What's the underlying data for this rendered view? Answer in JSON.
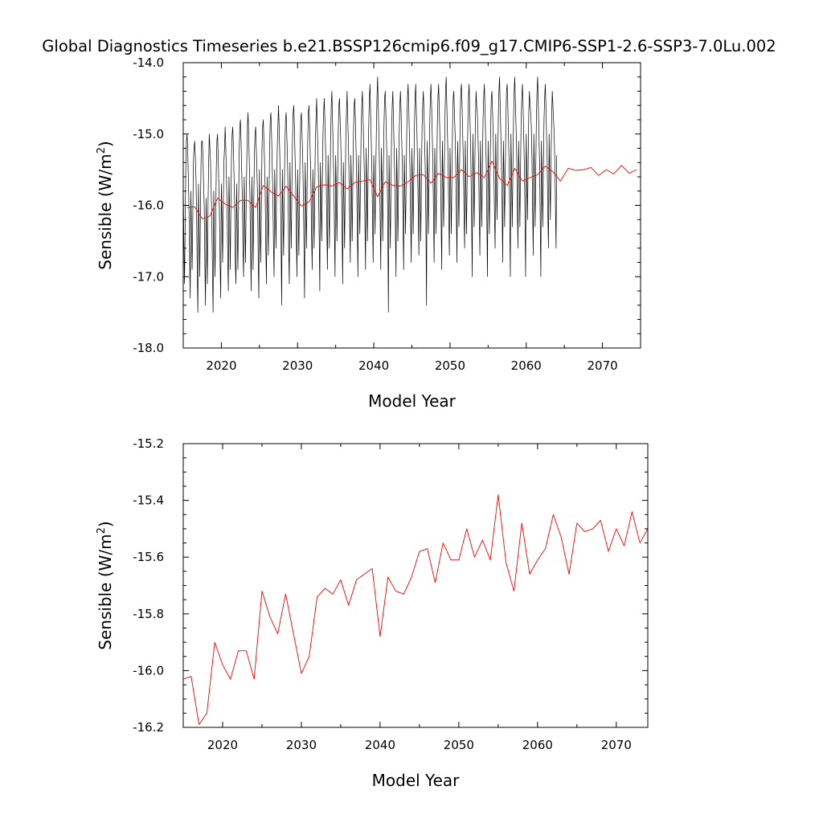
{
  "title": "Global Diagnostics Timeseries b.e21.BSSP126cmip6.f09_g17.CMIP6-SSP1-2.6-SSP3-7.0Lu.002",
  "colors": {
    "monthly": "#000000",
    "annual": "#ff0000",
    "axes": "#000000",
    "background": "#ffffff"
  },
  "chart_data": [
    {
      "type": "line",
      "xlabel": "Model Year",
      "ylabel_main": "Sensible (W/m",
      "ylabel_sup": "2",
      "ylabel_tail": ")",
      "xlim": [
        2015,
        2075
      ],
      "ylim": [
        -18.0,
        -14.0
      ],
      "xticks": [
        2020,
        2030,
        2040,
        2050,
        2060,
        2070
      ],
      "xtick_labels": [
        "2020",
        "2030",
        "2040",
        "2050",
        "2060",
        "2070"
      ],
      "yticks": [
        -18.0,
        -17.0,
        -16.0,
        -15.0,
        -14.0
      ],
      "ytick_labels": [
        "-18.0",
        "-17.0",
        "-16.0",
        "-15.0",
        "-14.0"
      ],
      "grid": false,
      "series": [
        {
          "kind": "monthly",
          "color": "#000000",
          "x_start": 2015.0,
          "x_step": 0.0833333,
          "values": [
            -15.7,
            -16.5,
            -17.1,
            -16.3,
            -15.5,
            -15.1,
            -15.0,
            -15.2,
            -15.6,
            -16.0,
            -16.7,
            -17.3,
            -15.8,
            -16.4,
            -16.9,
            -16.2,
            -15.4,
            -15.2,
            -15.1,
            -15.3,
            -15.6,
            -16.1,
            -16.9,
            -17.5,
            -15.7,
            -16.3,
            -17.0,
            -16.1,
            -15.4,
            -15.1,
            -15.1,
            -15.3,
            -15.7,
            -16.0,
            -16.8,
            -17.4,
            -15.9,
            -16.5,
            -17.1,
            -16.0,
            -15.4,
            -15.0,
            -15.2,
            -15.4,
            -15.8,
            -16.2,
            -16.9,
            -17.5,
            -15.8,
            -16.4,
            -17.0,
            -16.3,
            -15.5,
            -15.1,
            -15.0,
            -15.3,
            -15.7,
            -16.1,
            -16.8,
            -17.3,
            -15.7,
            -16.2,
            -16.8,
            -16.0,
            -15.4,
            -15.2,
            -14.9,
            -15.2,
            -15.6,
            -16.0,
            -16.7,
            -17.2,
            -15.6,
            -16.1,
            -16.9,
            -16.0,
            -15.3,
            -15.0,
            -14.9,
            -15.2,
            -15.6,
            -16.0,
            -16.8,
            -17.1,
            -15.7,
            -16.3,
            -16.9,
            -16.1,
            -15.3,
            -14.9,
            -14.8,
            -15.1,
            -15.5,
            -15.9,
            -16.6,
            -17.0,
            -15.6,
            -16.2,
            -16.8,
            -16.0,
            -15.4,
            -14.9,
            -14.7,
            -15.0,
            -15.4,
            -15.9,
            -16.6,
            -17.2,
            -15.6,
            -16.1,
            -16.9,
            -16.0,
            -15.3,
            -15.0,
            -14.9,
            -15.2,
            -15.5,
            -15.9,
            -16.7,
            -17.3,
            -15.5,
            -16.2,
            -16.8,
            -16.0,
            -15.2,
            -14.9,
            -14.8,
            -15.1,
            -15.4,
            -15.8,
            -16.6,
            -17.1,
            -15.6,
            -16.1,
            -16.7,
            -15.9,
            -15.2,
            -14.8,
            -14.7,
            -15.0,
            -15.4,
            -15.8,
            -16.5,
            -17.0,
            -15.5,
            -16.0,
            -16.6,
            -15.8,
            -15.2,
            -14.9,
            -14.6,
            -14.9,
            -15.3,
            -15.8,
            -16.5,
            -17.4,
            -15.5,
            -16.1,
            -16.7,
            -15.9,
            -15.2,
            -14.8,
            -14.7,
            -15.0,
            -15.3,
            -15.8,
            -16.6,
            -17.1,
            -15.4,
            -16.0,
            -16.6,
            -15.8,
            -15.1,
            -14.7,
            -14.6,
            -14.9,
            -15.3,
            -15.7,
            -16.4,
            -17.0,
            -15.5,
            -16.1,
            -16.7,
            -15.9,
            -15.2,
            -14.8,
            -14.7,
            -15.0,
            -15.3,
            -15.8,
            -16.5,
            -17.3,
            -15.4,
            -15.9,
            -16.6,
            -15.8,
            -15.1,
            -14.7,
            -14.6,
            -14.9,
            -15.3,
            -15.7,
            -16.4,
            -16.9,
            -15.5,
            -16.0,
            -16.6,
            -15.8,
            -15.1,
            -14.8,
            -14.5,
            -14.9,
            -15.2,
            -15.7,
            -16.4,
            -17.2,
            -15.4,
            -15.9,
            -16.5,
            -15.7,
            -15.0,
            -14.7,
            -14.5,
            -14.8,
            -15.2,
            -15.6,
            -16.3,
            -16.9,
            -15.3,
            -15.9,
            -16.6,
            -15.8,
            -15.1,
            -14.6,
            -14.4,
            -14.8,
            -15.2,
            -15.6,
            -16.3,
            -17.0,
            -15.3,
            -15.8,
            -16.5,
            -15.7,
            -15.0,
            -14.6,
            -14.5,
            -14.8,
            -15.1,
            -15.6,
            -16.3,
            -17.1,
            -15.4,
            -15.9,
            -16.6,
            -15.8,
            -15.0,
            -14.7,
            -14.4,
            -14.8,
            -15.1,
            -15.6,
            -16.2,
            -16.8,
            -15.3,
            -15.8,
            -16.5,
            -15.7,
            -15.0,
            -14.6,
            -14.5,
            -14.8,
            -15.2,
            -15.6,
            -16.3,
            -17.0,
            -15.3,
            -15.9,
            -16.4,
            -15.7,
            -15.0,
            -14.6,
            -14.4,
            -14.7,
            -15.1,
            -15.5,
            -16.2,
            -16.9,
            -15.2,
            -15.8,
            -16.5,
            -15.6,
            -14.9,
            -14.5,
            -14.3,
            -14.7,
            -15.1,
            -15.5,
            -16.2,
            -16.8,
            -15.3,
            -15.8,
            -16.4,
            -15.6,
            -15.0,
            -14.5,
            -14.2,
            -14.6,
            -15.0,
            -15.5,
            -16.2,
            -16.9,
            -15.2,
            -15.7,
            -16.5,
            -15.6,
            -14.9,
            -14.5,
            -14.4,
            -14.7,
            -15.1,
            -15.5,
            -16.2,
            -17.5,
            -15.3,
            -15.9,
            -16.6,
            -15.8,
            -15.0,
            -14.6,
            -14.4,
            -14.8,
            -15.2,
            -15.6,
            -16.3,
            -17.0,
            -15.2,
            -15.8,
            -16.5,
            -15.7,
            -15.0,
            -14.6,
            -14.4,
            -14.7,
            -15.1,
            -15.5,
            -16.2,
            -16.9,
            -15.3,
            -15.8,
            -16.4,
            -15.6,
            -14.9,
            -14.5,
            -14.3,
            -14.6,
            -15.0,
            -15.5,
            -16.2,
            -16.8,
            -15.2,
            -15.7,
            -16.4,
            -15.6,
            -14.9,
            -14.5,
            -14.3,
            -14.7,
            -15.0,
            -15.5,
            -16.1,
            -16.7,
            -15.2,
            -15.8,
            -16.5,
            -15.6,
            -14.9,
            -14.6,
            -14.4,
            -14.7,
            -15.1,
            -15.5,
            -16.2,
            -17.4,
            -15.1,
            -15.7,
            -16.4,
            -15.6,
            -14.9,
            -14.5,
            -14.3,
            -14.6,
            -15.0,
            -15.4,
            -16.1,
            -16.8,
            -15.2,
            -15.7,
            -16.4,
            -15.6,
            -14.9,
            -14.5,
            -14.3,
            -14.6,
            -15.0,
            -15.4,
            -16.2,
            -16.9,
            -15.1,
            -15.7,
            -16.3,
            -15.5,
            -14.8,
            -14.4,
            -14.2,
            -14.6,
            -15.0,
            -15.4,
            -16.1,
            -16.7,
            -15.2,
            -15.7,
            -16.4,
            -15.6,
            -14.9,
            -14.5,
            -14.4,
            -14.7,
            -15.0,
            -15.4,
            -16.1,
            -16.8,
            -15.1,
            -15.6,
            -16.3,
            -15.5,
            -14.8,
            -14.4,
            -14.3,
            -14.6,
            -15.0,
            -15.4,
            -16.1,
            -16.6,
            -15.1,
            -15.7,
            -16.4,
            -15.6,
            -14.9,
            -14.5,
            -14.3,
            -14.6,
            -15.0,
            -15.5,
            -16.2,
            -17.0,
            -15.0,
            -15.6,
            -16.3,
            -15.5,
            -14.8,
            -14.4,
            -14.6,
            -14.7,
            -15.0,
            -15.4,
            -16.1,
            -16.7,
            -15.1,
            -15.6,
            -16.3,
            -15.5,
            -14.8,
            -14.5,
            -14.3,
            -14.6,
            -15.0,
            -15.4,
            -16.2,
            -17.0,
            -15.1,
            -15.7,
            -16.4,
            -15.6,
            -14.9,
            -14.5,
            -14.4,
            -14.7,
            -15.0,
            -15.5,
            -16.1,
            -16.6,
            -15.0,
            -15.6,
            -16.2,
            -15.5,
            -14.8,
            -14.4,
            -14.2,
            -14.6,
            -15.0,
            -15.4,
            -16.0,
            -16.8,
            -15.1,
            -15.6,
            -16.3,
            -15.5,
            -14.8,
            -14.4,
            -14.3,
            -14.6,
            -15.0,
            -15.4,
            -16.1,
            -17.0,
            -15.0,
            -15.6,
            -16.3,
            -15.5,
            -14.8,
            -14.4,
            -14.2,
            -14.6,
            -14.9,
            -15.3,
            -16.0,
            -16.6,
            -15.1,
            -15.6,
            -16.3,
            -15.5,
            -14.8,
            -14.5,
            -14.3,
            -14.6,
            -15.0,
            -15.4,
            -16.1,
            -17.0,
            -15.0,
            -15.5,
            -16.2,
            -15.4,
            -14.7,
            -14.4,
            -14.6,
            -14.7,
            -14.9,
            -15.3,
            -16.0,
            -16.7,
            -15.0,
            -15.6,
            -16.3,
            -15.5,
            -14.8,
            -14.4,
            -14.2,
            -14.6,
            -15.0,
            -15.4,
            -16.2,
            -17.0,
            -15.1,
            -15.6,
            -16.3,
            -15.5,
            -14.8,
            -14.5,
            -14.3,
            -14.6,
            -15.0,
            -15.4,
            -16.1,
            -16.6,
            -15.0,
            -15.6,
            -16.2,
            -15.4,
            -14.8,
            -14.4,
            -14.6,
            -14.8,
            -15.0,
            -15.4,
            -16.0,
            -16.6,
            -15.3
          ]
        },
        {
          "kind": "annual",
          "color": "#ff0000",
          "x": [
            2015.5,
            2016.5,
            2017.5,
            2018.5,
            2019.5,
            2020.5,
            2021.5,
            2022.5,
            2023.5,
            2024.5,
            2025.5,
            2026.5,
            2027.5,
            2028.5,
            2029.5,
            2030.5,
            2031.5,
            2032.5,
            2033.5,
            2034.5,
            2035.5,
            2036.5,
            2037.5,
            2038.5,
            2039.5,
            2040.5,
            2041.5,
            2042.5,
            2043.5,
            2044.5,
            2045.5,
            2046.5,
            2047.5,
            2048.5,
            2049.5,
            2050.5,
            2051.5,
            2052.5,
            2053.5,
            2054.5,
            2055.5,
            2056.5,
            2057.5,
            2058.5,
            2059.5,
            2060.5,
            2061.5,
            2062.5,
            2063.5,
            2064.5,
            2065.5,
            2066.5,
            2067.5,
            2068.5,
            2069.5,
            2070.5,
            2071.5,
            2072.5,
            2073.5,
            2074.5
          ],
          "values": [
            -16.03,
            -16.02,
            -16.19,
            -16.15,
            -15.9,
            -15.98,
            -16.03,
            -15.93,
            -15.93,
            -16.03,
            -15.72,
            -15.81,
            -15.87,
            -15.73,
            -15.87,
            -16.01,
            -15.95,
            -15.74,
            -15.71,
            -15.73,
            -15.68,
            -15.77,
            -15.68,
            -15.66,
            -15.64,
            -15.88,
            -15.67,
            -15.72,
            -15.73,
            -15.67,
            -15.58,
            -15.57,
            -15.69,
            -15.55,
            -15.61,
            -15.61,
            -15.5,
            -15.6,
            -15.54,
            -15.61,
            -15.38,
            -15.62,
            -15.72,
            -15.48,
            -15.66,
            -15.61,
            -15.57,
            -15.45,
            -15.53,
            -15.66,
            -15.48,
            -15.51,
            -15.5,
            -15.47,
            -15.58,
            -15.5,
            -15.56,
            -15.44,
            -15.55,
            -15.5
          ]
        }
      ]
    },
    {
      "type": "line",
      "xlabel": "Model Year",
      "ylabel_main": "Sensible (W/m",
      "ylabel_sup": "2",
      "ylabel_tail": ")",
      "xlim": [
        2015,
        2074
      ],
      "ylim": [
        -16.2,
        -15.2
      ],
      "xticks": [
        2020,
        2030,
        2040,
        2050,
        2060,
        2070
      ],
      "xtick_labels": [
        "2020",
        "2030",
        "2040",
        "2050",
        "2060",
        "2070"
      ],
      "yticks": [
        -16.2,
        -16.0,
        -15.8,
        -15.6,
        -15.4,
        -15.2
      ],
      "ytick_labels": [
        "-16.2",
        "-16.0",
        "-15.8",
        "-15.6",
        "-15.4",
        "-15.2"
      ],
      "grid": false,
      "series": [
        {
          "kind": "annual",
          "color": "#ff0000",
          "x": [
            2015.0,
            2016.0,
            2017.0,
            2018.0,
            2019.0,
            2020.0,
            2021.0,
            2022.0,
            2023.0,
            2024.0,
            2025.0,
            2026.0,
            2027.0,
            2028.0,
            2029.0,
            2030.0,
            2031.0,
            2032.0,
            2033.0,
            2034.0,
            2035.0,
            2036.0,
            2037.0,
            2038.0,
            2039.0,
            2040.0,
            2041.0,
            2042.0,
            2043.0,
            2044.0,
            2045.0,
            2046.0,
            2047.0,
            2048.0,
            2049.0,
            2050.0,
            2051.0,
            2052.0,
            2053.0,
            2054.0,
            2055.0,
            2056.0,
            2057.0,
            2058.0,
            2059.0,
            2060.0,
            2061.0,
            2062.0,
            2063.0,
            2064.0,
            2065.0,
            2066.0,
            2067.0,
            2068.0,
            2069.0,
            2070.0,
            2071.0,
            2072.0,
            2073.0,
            2074.0
          ],
          "values": [
            -16.03,
            -16.02,
            -16.19,
            -16.15,
            -15.9,
            -15.98,
            -16.03,
            -15.93,
            -15.93,
            -16.03,
            -15.72,
            -15.81,
            -15.87,
            -15.73,
            -15.87,
            -16.01,
            -15.95,
            -15.74,
            -15.71,
            -15.73,
            -15.68,
            -15.77,
            -15.68,
            -15.66,
            -15.64,
            -15.88,
            -15.67,
            -15.72,
            -15.73,
            -15.67,
            -15.58,
            -15.57,
            -15.69,
            -15.55,
            -15.61,
            -15.61,
            -15.5,
            -15.6,
            -15.54,
            -15.61,
            -15.38,
            -15.62,
            -15.72,
            -15.48,
            -15.66,
            -15.61,
            -15.57,
            -15.45,
            -15.53,
            -15.66,
            -15.48,
            -15.51,
            -15.5,
            -15.47,
            -15.58,
            -15.5,
            -15.56,
            -15.44,
            -15.55,
            -15.5
          ]
        }
      ]
    }
  ]
}
